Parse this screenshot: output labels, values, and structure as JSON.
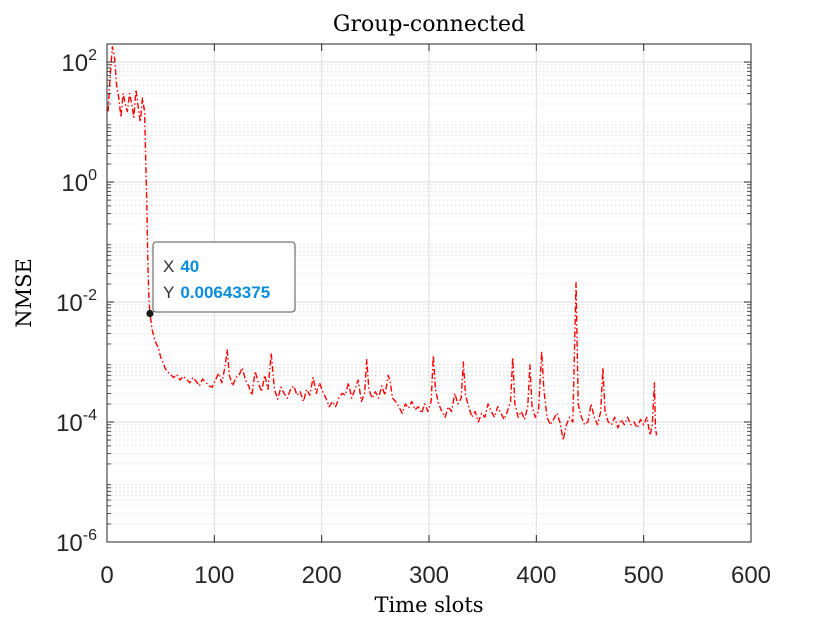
{
  "chart_data": {
    "type": "line",
    "title": "Group-connected",
    "xlabel": "Time slots",
    "ylabel": "NMSE",
    "xlim": [
      0,
      600
    ],
    "ylim": [
      1e-06,
      200
    ],
    "xscale": "linear",
    "yscale": "log",
    "grid": true,
    "minor_grid": true,
    "x_ticks": [
      0,
      100,
      200,
      300,
      400,
      500,
      600
    ],
    "x_tick_labels": [
      "0",
      "100",
      "200",
      "300",
      "400",
      "500",
      "600"
    ],
    "y_ticks": [
      1e-06,
      0.0001,
      0.01,
      1,
      100
    ],
    "y_tick_labels": [
      {
        "base": "10",
        "exp": "-6"
      },
      {
        "base": "10",
        "exp": "-4"
      },
      {
        "base": "10",
        "exp": "-2"
      },
      {
        "base": "10",
        "exp": "0"
      },
      {
        "base": "10",
        "exp": "2"
      }
    ],
    "series": [
      {
        "color": "#ff0000",
        "line_style": "dash-dot",
        "points": [
          [
            1,
            15
          ],
          [
            3,
            60
          ],
          [
            5,
            180
          ],
          [
            7,
            120
          ],
          [
            9,
            40
          ],
          [
            11,
            25
          ],
          [
            13,
            12
          ],
          [
            15,
            30
          ],
          [
            17,
            20
          ],
          [
            19,
            15
          ],
          [
            21,
            30
          ],
          [
            23,
            20
          ],
          [
            25,
            12
          ],
          [
            27,
            35
          ],
          [
            29,
            18
          ],
          [
            31,
            10
          ],
          [
            33,
            25
          ],
          [
            35,
            15
          ],
          [
            37,
            0.5
          ],
          [
            38,
            0.05
          ],
          [
            39,
            0.012
          ],
          [
            40,
            0.00643375
          ],
          [
            42,
            0.0035
          ],
          [
            44,
            0.0025
          ],
          [
            46,
            0.002
          ],
          [
            48,
            0.0017
          ],
          [
            50,
            0.0012
          ],
          [
            52,
            0.001
          ],
          [
            54,
            0.0008
          ],
          [
            56,
            0.0007
          ],
          [
            58,
            0.00065
          ],
          [
            60,
            0.0006
          ],
          [
            62,
            0.00055
          ],
          [
            65,
            0.00062
          ],
          [
            68,
            0.0005
          ],
          [
            71,
            0.00058
          ],
          [
            74,
            0.00052
          ],
          [
            77,
            0.00045
          ],
          [
            80,
            0.00055
          ],
          [
            83,
            0.00048
          ],
          [
            86,
            0.0004
          ],
          [
            89,
            0.00052
          ],
          [
            92,
            0.00046
          ],
          [
            95,
            0.0004
          ],
          [
            98,
            0.00038
          ],
          [
            101,
            0.0005
          ],
          [
            104,
            0.00065
          ],
          [
            107,
            0.00045
          ],
          [
            110,
            0.00085
          ],
          [
            112,
            0.0016
          ],
          [
            114,
            0.0006
          ],
          [
            117,
            0.0004
          ],
          [
            120,
            0.00055
          ],
          [
            123,
            0.0006
          ],
          [
            126,
            0.0008
          ],
          [
            129,
            0.0005
          ],
          [
            132,
            0.0004
          ],
          [
            135,
            0.00028
          ],
          [
            138,
            0.0007
          ],
          [
            141,
            0.00045
          ],
          [
            144,
            0.00032
          ],
          [
            147,
            0.0006
          ],
          [
            150,
            0.00035
          ],
          [
            153,
            0.0014
          ],
          [
            156,
            0.00035
          ],
          [
            159,
            0.00024
          ],
          [
            162,
            0.00038
          ],
          [
            165,
            0.0003
          ],
          [
            168,
            0.00025
          ],
          [
            171,
            0.00035
          ],
          [
            174,
            0.0004
          ],
          [
            177,
            0.00028
          ],
          [
            180,
            0.00032
          ],
          [
            183,
            0.00022
          ],
          [
            186,
            0.00035
          ],
          [
            189,
            0.00028
          ],
          [
            192,
            0.00055
          ],
          [
            195,
            0.0003
          ],
          [
            198,
            0.00045
          ],
          [
            201,
            0.00032
          ],
          [
            204,
            0.00025
          ],
          [
            207,
            0.00018
          ],
          [
            210,
            0.00022
          ],
          [
            213,
            0.00018
          ],
          [
            216,
            0.00025
          ],
          [
            219,
            0.0003
          ],
          [
            222,
            0.00028
          ],
          [
            225,
            0.00045
          ],
          [
            228,
            0.00025
          ],
          [
            231,
            0.00035
          ],
          [
            234,
            0.0005
          ],
          [
            237,
            0.00022
          ],
          [
            240,
            0.0003
          ],
          [
            242,
            0.0011
          ],
          [
            244,
            0.00035
          ],
          [
            247,
            0.00025
          ],
          [
            250,
            0.00032
          ],
          [
            253,
            0.00025
          ],
          [
            256,
            0.0004
          ],
          [
            259,
            0.00028
          ],
          [
            262,
            0.0006
          ],
          [
            264,
            0.00045
          ],
          [
            266,
            0.00025
          ],
          [
            269,
            0.00022
          ],
          [
            272,
            0.00018
          ],
          [
            275,
            0.00014
          ],
          [
            278,
            0.0002
          ],
          [
            281,
            0.00017
          ],
          [
            284,
            0.00022
          ],
          [
            287,
            0.00016
          ],
          [
            290,
            0.00018
          ],
          [
            293,
            0.00014
          ],
          [
            296,
            0.0002
          ],
          [
            299,
            0.00015
          ],
          [
            302,
            0.00022
          ],
          [
            304,
            0.0013
          ],
          [
            306,
            0.00035
          ],
          [
            309,
            0.0002
          ],
          [
            312,
            0.00015
          ],
          [
            315,
            0.00012
          ],
          [
            318,
            0.00018
          ],
          [
            321,
            0.00015
          ],
          [
            324,
            0.0003
          ],
          [
            327,
            0.0002
          ],
          [
            330,
            0.00025
          ],
          [
            332,
            0.001
          ],
          [
            334,
            0.00028
          ],
          [
            337,
            0.00018
          ],
          [
            340,
            0.00012
          ],
          [
            343,
            0.00015
          ],
          [
            346,
            0.0001
          ],
          [
            349,
            0.00014
          ],
          [
            352,
            0.00012
          ],
          [
            355,
            0.0002
          ],
          [
            358,
            0.00015
          ],
          [
            361,
            0.00012
          ],
          [
            364,
            0.00018
          ],
          [
            367,
            0.00014
          ],
          [
            370,
            0.00011
          ],
          [
            373,
            0.00015
          ],
          [
            376,
            0.00022
          ],
          [
            378,
            0.0012
          ],
          [
            380,
            0.0002
          ],
          [
            383,
            0.00012
          ],
          [
            386,
            0.00015
          ],
          [
            389,
            0.00011
          ],
          [
            392,
            0.00018
          ],
          [
            394,
            0.0009
          ],
          [
            396,
            0.00018
          ],
          [
            399,
            0.00012
          ],
          [
            402,
            0.00015
          ],
          [
            405,
            0.0015
          ],
          [
            407,
            0.00035
          ],
          [
            410,
            0.00012
          ],
          [
            413,
            9e-05
          ],
          [
            416,
            0.00011
          ],
          [
            419,
            0.00014
          ],
          [
            422,
            0.0001
          ],
          [
            425,
            5e-05
          ],
          [
            428,
            9e-05
          ],
          [
            431,
            0.00012
          ],
          [
            434,
            0.0001
          ],
          [
            437,
            0.021
          ],
          [
            439,
            0.0002
          ],
          [
            442,
            0.00012
          ],
          [
            445,
            9e-05
          ],
          [
            448,
            0.0001
          ],
          [
            451,
            0.0002
          ],
          [
            454,
            0.00012
          ],
          [
            457,
            9e-05
          ],
          [
            460,
            0.00015
          ],
          [
            462,
            0.0008
          ],
          [
            464,
            0.00015
          ],
          [
            467,
            0.0001
          ],
          [
            470,
            9e-05
          ],
          [
            473,
            0.00012
          ],
          [
            476,
            8e-05
          ],
          [
            479,
            0.00011
          ],
          [
            482,
            9e-05
          ],
          [
            485,
            0.00012
          ],
          [
            488,
            9e-05
          ],
          [
            491,
            0.0001
          ],
          [
            494,
            8e-05
          ],
          [
            497,
            0.00011
          ],
          [
            500,
            9e-05
          ],
          [
            503,
            0.00012
          ],
          [
            506,
            6e-05
          ],
          [
            508,
            9e-05
          ],
          [
            510,
            0.00045
          ],
          [
            511,
            8e-05
          ],
          [
            512,
            6e-05
          ]
        ]
      }
    ],
    "datatip": {
      "x_label": "X",
      "x_value": "40",
      "y_label": "Y",
      "y_value": "0.00643375",
      "x": 40,
      "y": 0.00643375,
      "value_color": "#0a8ddc"
    }
  }
}
